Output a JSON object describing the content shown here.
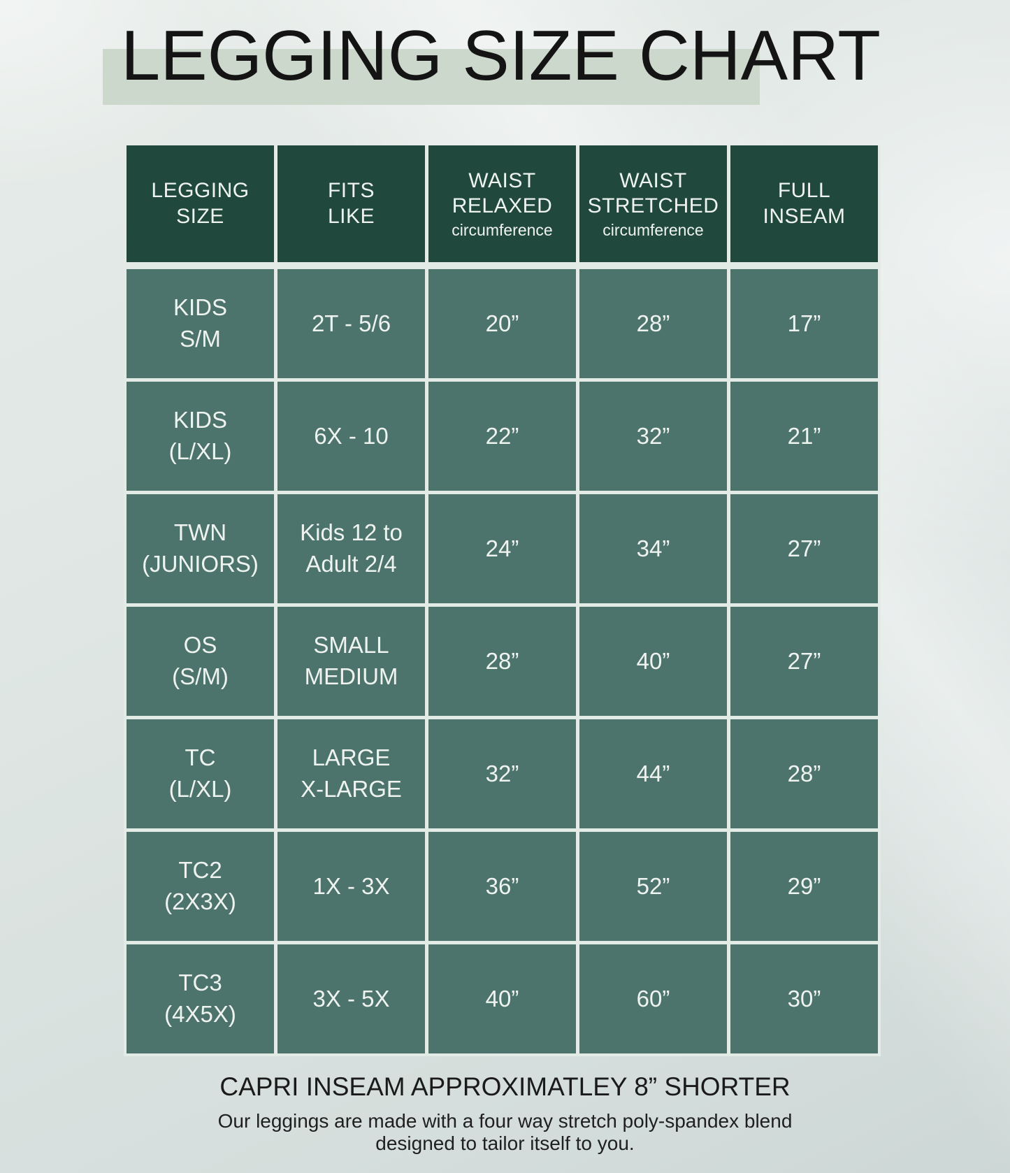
{
  "chart_data": {
    "type": "table",
    "title": "LEGGING SIZE CHART",
    "columns": [
      {
        "title": "LEGGING\nSIZE",
        "sub": ""
      },
      {
        "title": "FITS\nLIKE",
        "sub": ""
      },
      {
        "title": "WAIST\nRELAXED",
        "sub": "circumference"
      },
      {
        "title": "WAIST\nSTRETCHED",
        "sub": "circumference"
      },
      {
        "title": "FULL\nINSEAM",
        "sub": ""
      }
    ],
    "rows": [
      {
        "cells": [
          "KIDS\nS/M",
          "2T - 5/6",
          "20”",
          "28”",
          "17”"
        ]
      },
      {
        "cells": [
          "KIDS\n(L/XL)",
          "6X - 10",
          "22”",
          "32”",
          "21”"
        ]
      },
      {
        "cells": [
          "TWN\n(JUNIORS)",
          "Kids 12 to\nAdult 2/4",
          "24”",
          "34”",
          "27”"
        ]
      },
      {
        "cells": [
          "OS\n(S/M)",
          "SMALL\nMEDIUM",
          "28”",
          "40”",
          "27”"
        ]
      },
      {
        "cells": [
          "TC\n(L/XL)",
          "LARGE\nX-LARGE",
          "32”",
          "44”",
          "28”"
        ]
      },
      {
        "cells": [
          "TC2\n(2X3X)",
          "1X - 3X",
          "36”",
          "52”",
          "29”"
        ]
      },
      {
        "cells": [
          "TC3\n(4X5X)",
          "3X - 5X",
          "40”",
          "60”",
          "30”"
        ]
      }
    ],
    "notes": {
      "capri": "CAPRI INSEAM APPROXIMATLEY 8” SHORTER",
      "description": "Our leggings are made with a four way stretch poly-spandex blend\ndesigned to tailor itself to you."
    },
    "layout_hints": {
      "grid": "on",
      "legend_position": "none"
    }
  },
  "colors": {
    "header_green": "#20483c",
    "body_green": "#4d746c",
    "divider": "#e3ebe7",
    "title_highlight_band": "#cdd8cc",
    "cell_text": "#eef3f0",
    "title_text": "#141414"
  }
}
